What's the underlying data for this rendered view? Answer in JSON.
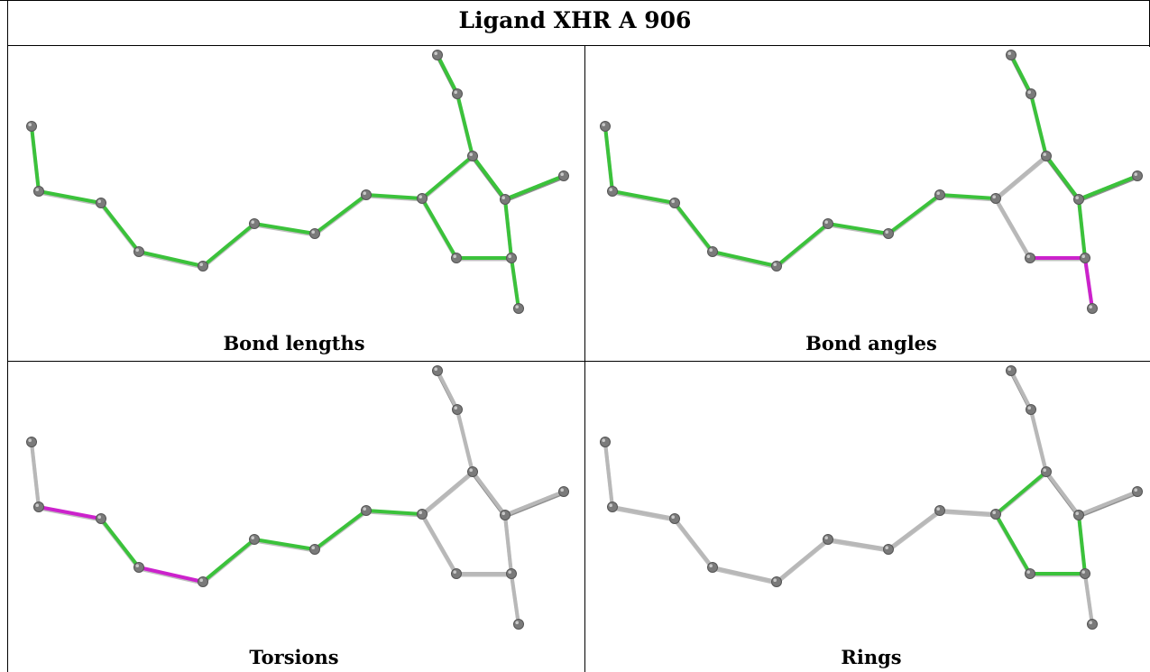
{
  "title": "Ligand XHR A 906",
  "colors": {
    "green": "#3bc23b",
    "magenta": "#cc22cc",
    "gray": "#b8b8b8",
    "atom": "#7a7a7a"
  },
  "panels": [
    {
      "caption": "Bond lengths",
      "bonds": [
        "g",
        "g",
        "g",
        "g",
        "g",
        "g",
        "g",
        "g",
        "g",
        "g",
        "g",
        "g",
        "g",
        "g",
        "g",
        "g",
        "g",
        "g",
        "g",
        "g"
      ]
    },
    {
      "caption": "Bond angles",
      "bonds": [
        "g",
        "g",
        "g",
        "g",
        "g",
        "g",
        "g",
        "g",
        "g",
        "g",
        "g",
        "g",
        "x",
        "x",
        "m",
        "g",
        "g",
        "g",
        "m",
        "g"
      ]
    },
    {
      "caption": "Torsions",
      "bonds": [
        "x",
        "m",
        "g",
        "m",
        "g",
        "g",
        "g",
        "g",
        "x",
        "x",
        "x",
        "x",
        "x",
        "x",
        "x",
        "x",
        "x",
        "x",
        "x",
        "x"
      ]
    },
    {
      "caption": "Rings",
      "bonds": [
        "x",
        "x",
        "x",
        "x",
        "x",
        "x",
        "x",
        "x",
        "x",
        "x",
        "x",
        "x",
        "g",
        "g",
        "g",
        "g",
        "x",
        "x",
        "x",
        "x"
      ]
    }
  ]
}
